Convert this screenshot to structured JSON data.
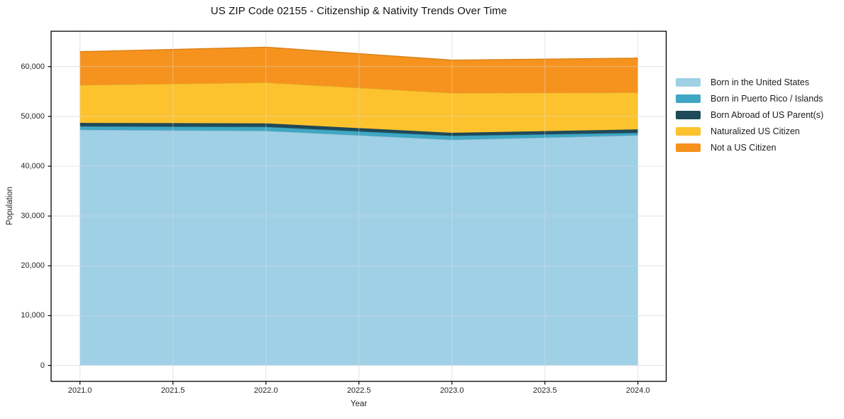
{
  "chart_data": {
    "type": "area",
    "stacked": true,
    "title": "US ZIP Code 02155 - Citizenship & Nativity Trends Over Time",
    "xlabel": "Year",
    "ylabel": "Population",
    "x": [
      2021,
      2022,
      2023,
      2024
    ],
    "series": [
      {
        "name": "Born in the United States",
        "color": "#9FD0E6",
        "values": [
          47300,
          47100,
          45300,
          46200
        ]
      },
      {
        "name": "Born in Puerto Rico / Islands",
        "color": "#3FA7C4",
        "values": [
          700,
          800,
          800,
          500
        ]
      },
      {
        "name": "Born Abroad of US Parent(s)",
        "color": "#1F4A5A",
        "values": [
          700,
          700,
          600,
          700
        ]
      },
      {
        "name": "Naturalized US Citizen",
        "color": "#FDC32E",
        "values": [
          7600,
          8200,
          8000,
          7400
        ]
      },
      {
        "name": "Not a US Citizen",
        "color": "#F6931E",
        "values": [
          6700,
          7100,
          6600,
          6900
        ]
      }
    ],
    "xlim": [
      2020.845,
      2024.152
    ],
    "ylim": [
      -3200,
      67100
    ],
    "xticks": {
      "values": [
        2021.0,
        2021.5,
        2022.0,
        2022.5,
        2023.0,
        2023.5,
        2024.0
      ],
      "labels": [
        "2021.0",
        "2021.5",
        "2022.0",
        "2022.5",
        "2023.0",
        "2023.5",
        "2024.0"
      ]
    },
    "yticks": {
      "values": [
        0,
        10000,
        20000,
        30000,
        40000,
        50000,
        60000
      ],
      "labels": [
        "0",
        "10,000",
        "20,000",
        "30,000",
        "40,000",
        "50,000",
        "60,000"
      ]
    },
    "grid": true,
    "legend_position": "right of plot, no frame"
  }
}
